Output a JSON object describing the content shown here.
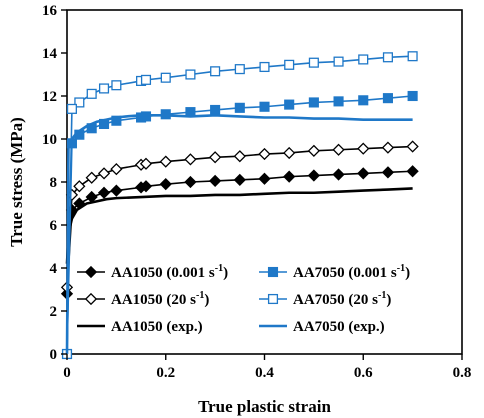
{
  "chart_data": {
    "type": "line",
    "title": "",
    "xlabel": "True plastic strain",
    "ylabel": "True stress (MPa)",
    "xlim": [
      0,
      0.8
    ],
    "ylim": [
      0,
      16
    ],
    "x_ticks": [
      "0",
      "0.2",
      "0.4",
      "0.6",
      "0.8"
    ],
    "y_ticks": [
      "0",
      "2",
      "4",
      "6",
      "8",
      "10",
      "12",
      "14",
      "16"
    ],
    "grid": false,
    "legend_position": "bottom-inside",
    "series": [
      {
        "name": "AA1050 (0.001 s",
        "name_sup": "-1",
        "name_end": ")",
        "color": "#000000",
        "marker": "diamond-filled",
        "x": [
          0,
          0.01,
          0.025,
          0.05,
          0.075,
          0.1,
          0.15,
          0.16,
          0.2,
          0.25,
          0.3,
          0.35,
          0.4,
          0.45,
          0.5,
          0.55,
          0.6,
          0.65,
          0.7
        ],
        "y": [
          2.8,
          6.7,
          7.0,
          7.3,
          7.5,
          7.6,
          7.75,
          7.8,
          7.9,
          8.0,
          8.05,
          8.1,
          8.15,
          8.25,
          8.3,
          8.35,
          8.4,
          8.45,
          8.5
        ]
      },
      {
        "name": "AA1050 (20 s",
        "name_sup": "-1",
        "name_end": ")",
        "color": "#000000",
        "marker": "diamond-open",
        "x": [
          0,
          0.01,
          0.025,
          0.05,
          0.075,
          0.1,
          0.15,
          0.16,
          0.2,
          0.25,
          0.3,
          0.35,
          0.4,
          0.45,
          0.5,
          0.55,
          0.6,
          0.65,
          0.7
        ],
        "y": [
          3.1,
          7.4,
          7.8,
          8.2,
          8.4,
          8.6,
          8.8,
          8.85,
          8.95,
          9.05,
          9.15,
          9.2,
          9.3,
          9.35,
          9.45,
          9.5,
          9.55,
          9.6,
          9.65
        ]
      },
      {
        "name": "AA1050 (exp.)",
        "color": "#000000",
        "marker": "none",
        "x": [
          0,
          0.003,
          0.01,
          0.02,
          0.04,
          0.06,
          0.08,
          0.1,
          0.15,
          0.2,
          0.25,
          0.3,
          0.35,
          0.4,
          0.45,
          0.5,
          0.55,
          0.6,
          0.65,
          0.7
        ],
        "y": [
          4.2,
          5.6,
          6.3,
          6.7,
          7.0,
          7.1,
          7.2,
          7.25,
          7.3,
          7.35,
          7.35,
          7.4,
          7.4,
          7.45,
          7.5,
          7.5,
          7.55,
          7.6,
          7.65,
          7.7
        ]
      },
      {
        "name": "AA7050 (0.001 s",
        "name_sup": "-1",
        "name_end": ")",
        "color": "#1f78c8",
        "marker": "square-filled",
        "x": [
          0,
          0.01,
          0.025,
          0.05,
          0.075,
          0.1,
          0.15,
          0.16,
          0.2,
          0.25,
          0.3,
          0.35,
          0.4,
          0.45,
          0.5,
          0.55,
          0.6,
          0.65,
          0.7
        ],
        "y": [
          0,
          9.8,
          10.2,
          10.5,
          10.7,
          10.85,
          11.0,
          11.05,
          11.15,
          11.25,
          11.35,
          11.45,
          11.5,
          11.6,
          11.7,
          11.75,
          11.8,
          11.9,
          12.0
        ]
      },
      {
        "name": "AA7050 (20 s",
        "name_sup": "-1",
        "name_end": ")",
        "color": "#1f78c8",
        "marker": "square-open",
        "x": [
          0,
          0.01,
          0.025,
          0.05,
          0.075,
          0.1,
          0.15,
          0.16,
          0.2,
          0.25,
          0.3,
          0.35,
          0.4,
          0.45,
          0.5,
          0.55,
          0.6,
          0.65,
          0.7
        ],
        "y": [
          0,
          11.4,
          11.7,
          12.1,
          12.35,
          12.5,
          12.7,
          12.75,
          12.85,
          13.0,
          13.15,
          13.25,
          13.35,
          13.45,
          13.55,
          13.6,
          13.7,
          13.8,
          13.85
        ]
      },
      {
        "name": "AA7050 (exp.)",
        "color": "#1f78c8",
        "marker": "none",
        "x": [
          0,
          0.003,
          0.006,
          0.01,
          0.02,
          0.04,
          0.06,
          0.08,
          0.1,
          0.12,
          0.15,
          0.2,
          0.25,
          0.3,
          0.35,
          0.4,
          0.45,
          0.5,
          0.55,
          0.6,
          0.65,
          0.7
        ],
        "y": [
          0,
          9.6,
          9.9,
          10.0,
          10.3,
          10.6,
          10.8,
          10.9,
          11.0,
          11.05,
          11.1,
          11.1,
          11.05,
          11.1,
          11.05,
          11.0,
          11.0,
          10.95,
          10.95,
          10.9,
          10.9,
          10.9
        ]
      }
    ]
  }
}
